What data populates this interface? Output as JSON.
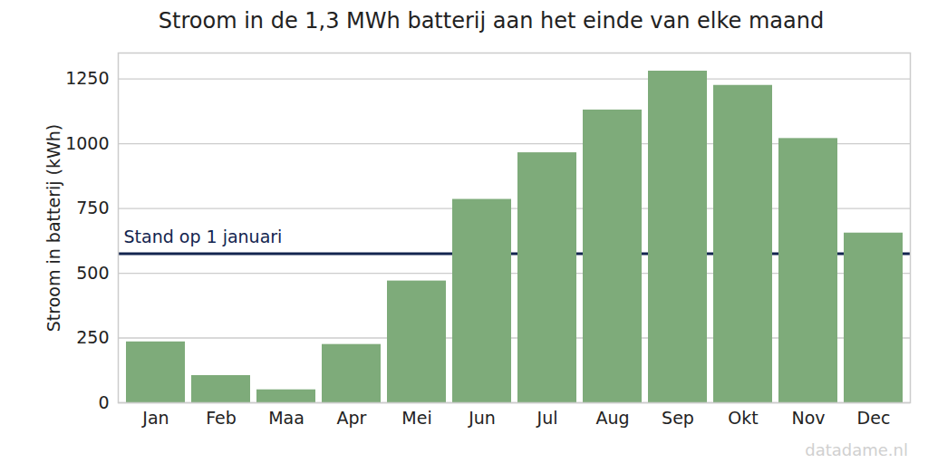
{
  "chart_data": {
    "type": "bar",
    "title": "Stroom in de 1,3 MWh batterij aan het einde van elke maand",
    "y_label": "Stroom in batterij (kWh)",
    "categories": [
      "Jan",
      "Feb",
      "Maa",
      "Apr",
      "Mei",
      "Jun",
      "Jul",
      "Aug",
      "Sep",
      "Okt",
      "Nov",
      "Dec"
    ],
    "values": [
      235,
      105,
      50,
      225,
      470,
      785,
      965,
      1130,
      1280,
      1225,
      1020,
      655
    ],
    "color": "#7eab7a",
    "ylim": [
      0,
      1350
    ],
    "yticks": [
      0,
      250,
      500,
      750,
      1000,
      1250
    ],
    "grid": true,
    "reference_line": {
      "label": "Stand op 1 januari",
      "value": 575,
      "color": "#13254f"
    },
    "source": "datadame.nl"
  }
}
